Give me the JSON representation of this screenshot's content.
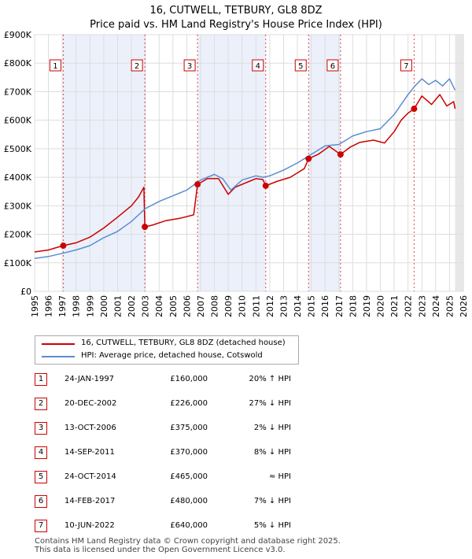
{
  "chart_data": {
    "type": "line",
    "title": "16, CUTWELL, TETBURY, GL8 8DZ",
    "subtitle": "Price paid vs. HM Land Registry's House Price Index (HPI)",
    "xlabel": "",
    "ylabel": "",
    "xlim": [
      1995,
      2026
    ],
    "ylim": [
      0,
      900000
    ],
    "grid": true,
    "x_ticks": [
      "1995",
      "1996",
      "1997",
      "1998",
      "1999",
      "2000",
      "2001",
      "2002",
      "2003",
      "2004",
      "2005",
      "2006",
      "2007",
      "2008",
      "2009",
      "2010",
      "2011",
      "2012",
      "2013",
      "2014",
      "2015",
      "2016",
      "2017",
      "2018",
      "2019",
      "2020",
      "2021",
      "2022",
      "2023",
      "2024",
      "2025",
      "2026"
    ],
    "y_ticks": [
      {
        "value": 0,
        "label": "£0"
      },
      {
        "value": 100000,
        "label": "£100K"
      },
      {
        "value": 200000,
        "label": "£200K"
      },
      {
        "value": 300000,
        "label": "£300K"
      },
      {
        "value": 400000,
        "label": "£400K"
      },
      {
        "value": 500000,
        "label": "£500K"
      },
      {
        "value": 600000,
        "label": "£600K"
      },
      {
        "value": 700000,
        "label": "£700K"
      },
      {
        "value": 800000,
        "label": "£800K"
      },
      {
        "value": 900000,
        "label": "£900K"
      }
    ],
    "series": [
      {
        "name": "16, CUTWELL, TETBURY, GL8 8DZ (detached house)",
        "color": "#cc0000",
        "points": [
          [
            1995.0,
            138000
          ],
          [
            1996.0,
            145000
          ],
          [
            1996.5,
            152000
          ],
          [
            1997.07,
            160000
          ],
          [
            1998.0,
            170000
          ],
          [
            1999.0,
            190000
          ],
          [
            2000.0,
            222000
          ],
          [
            2001.0,
            260000
          ],
          [
            2002.0,
            300000
          ],
          [
            2002.5,
            330000
          ],
          [
            2002.9,
            365000
          ],
          [
            2002.97,
            226000
          ],
          [
            2003.5,
            232000
          ],
          [
            2004.5,
            248000
          ],
          [
            2005.5,
            256000
          ],
          [
            2006.5,
            268000
          ],
          [
            2006.78,
            375000
          ],
          [
            2007.5,
            395000
          ],
          [
            2008.3,
            395000
          ],
          [
            2009.0,
            340000
          ],
          [
            2009.5,
            365000
          ],
          [
            2010.5,
            385000
          ],
          [
            2011.0,
            395000
          ],
          [
            2011.5,
            392000
          ],
          [
            2011.71,
            370000
          ],
          [
            2012.5,
            385000
          ],
          [
            2013.5,
            400000
          ],
          [
            2014.5,
            430000
          ],
          [
            2014.81,
            465000
          ],
          [
            2015.5,
            480000
          ],
          [
            2016.3,
            508000
          ],
          [
            2017.12,
            480000
          ],
          [
            2017.8,
            505000
          ],
          [
            2018.5,
            522000
          ],
          [
            2019.5,
            530000
          ],
          [
            2020.3,
            520000
          ],
          [
            2021.0,
            560000
          ],
          [
            2021.5,
            600000
          ],
          [
            2022.0,
            625000
          ],
          [
            2022.44,
            640000
          ],
          [
            2023.0,
            685000
          ],
          [
            2023.7,
            655000
          ],
          [
            2024.3,
            690000
          ],
          [
            2024.8,
            650000
          ],
          [
            2025.3,
            665000
          ],
          [
            2025.4,
            640000
          ]
        ]
      },
      {
        "name": "HPI: Average price, detached house, Cotswold",
        "color": "#5b8dd0",
        "points": [
          [
            1995.0,
            115000
          ],
          [
            1996.0,
            122000
          ],
          [
            1997.0,
            133000
          ],
          [
            1998.0,
            145000
          ],
          [
            1999.0,
            160000
          ],
          [
            2000.0,
            188000
          ],
          [
            2001.0,
            210000
          ],
          [
            2002.0,
            245000
          ],
          [
            2003.0,
            290000
          ],
          [
            2004.0,
            315000
          ],
          [
            2005.0,
            335000
          ],
          [
            2006.0,
            355000
          ],
          [
            2007.0,
            390000
          ],
          [
            2008.0,
            410000
          ],
          [
            2008.6,
            395000
          ],
          [
            2009.2,
            355000
          ],
          [
            2010.0,
            390000
          ],
          [
            2011.0,
            405000
          ],
          [
            2011.5,
            400000
          ],
          [
            2012.0,
            405000
          ],
          [
            2013.0,
            425000
          ],
          [
            2014.0,
            450000
          ],
          [
            2015.0,
            480000
          ],
          [
            2016.0,
            510000
          ],
          [
            2017.0,
            515000
          ],
          [
            2018.0,
            545000
          ],
          [
            2019.0,
            560000
          ],
          [
            2020.0,
            570000
          ],
          [
            2021.0,
            620000
          ],
          [
            2022.0,
            690000
          ],
          [
            2022.5,
            720000
          ],
          [
            2023.0,
            745000
          ],
          [
            2023.5,
            725000
          ],
          [
            2024.0,
            740000
          ],
          [
            2024.5,
            720000
          ],
          [
            2025.0,
            745000
          ],
          [
            2025.4,
            705000
          ]
        ]
      }
    ],
    "sales": [
      {
        "num": "1",
        "year": 1997.07,
        "price": 160000
      },
      {
        "num": "2",
        "year": 2002.97,
        "price": 226000
      },
      {
        "num": "3",
        "year": 2006.78,
        "price": 375000
      },
      {
        "num": "4",
        "year": 2011.71,
        "price": 370000
      },
      {
        "num": "5",
        "year": 2014.81,
        "price": 465000
      },
      {
        "num": "6",
        "year": 2017.12,
        "price": 480000
      },
      {
        "num": "7",
        "year": 2022.44,
        "price": 640000
      }
    ],
    "forecast_start": 2025.4
  },
  "legend": {
    "property": "16, CUTWELL, TETBURY, GL8 8DZ (detached house)",
    "hpi": "HPI: Average price, detached house, Cotswold",
    "property_color": "#cc0000",
    "hpi_color": "#5b8dd0"
  },
  "sales_table": [
    {
      "num": "1",
      "date": "24-JAN-1997",
      "price": "£160,000",
      "hpi": "20% ↑ HPI"
    },
    {
      "num": "2",
      "date": "20-DEC-2002",
      "price": "£226,000",
      "hpi": "27% ↓ HPI"
    },
    {
      "num": "3",
      "date": "13-OCT-2006",
      "price": "£375,000",
      "hpi": "2% ↓ HPI"
    },
    {
      "num": "4",
      "date": "14-SEP-2011",
      "price": "£370,000",
      "hpi": "8% ↓ HPI"
    },
    {
      "num": "5",
      "date": "24-OCT-2014",
      "price": "£465,000",
      "hpi": "≈ HPI"
    },
    {
      "num": "6",
      "date": "14-FEB-2017",
      "price": "£480,000",
      "hpi": "7% ↓ HPI"
    },
    {
      "num": "7",
      "date": "10-JUN-2022",
      "price": "£640,000",
      "hpi": "5% ↓ HPI"
    }
  ],
  "footer": {
    "line1": "Contains HM Land Registry data © Crown copyright and database right 2025.",
    "line2": "This data is licensed under the Open Government Licence v3.0."
  }
}
